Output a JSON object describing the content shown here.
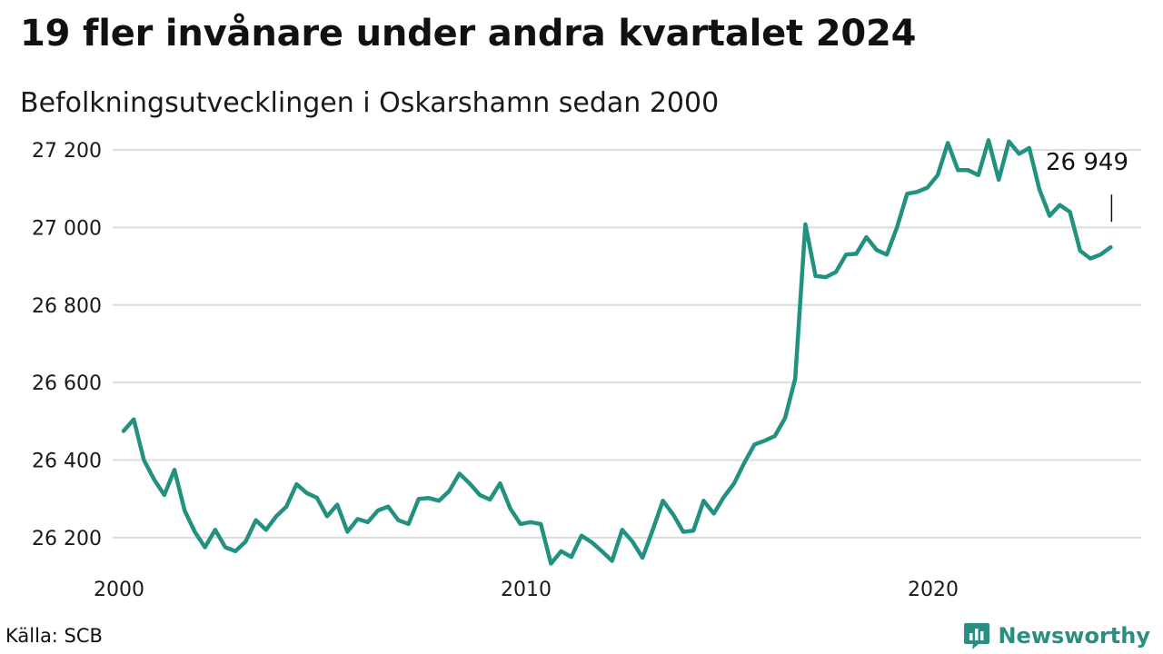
{
  "chart_data": {
    "type": "line",
    "title": "19 fler invånare under andra kvartalet 2024",
    "subtitle": "Befolkningsutvecklingen i Oskarshamn sedan 2000",
    "xlabel": "",
    "ylabel": "",
    "ylim": [
      26120,
      27240
    ],
    "yticks": [
      26200,
      26400,
      26600,
      26800,
      27000,
      27200
    ],
    "ytick_labels": [
      "26 200",
      "26 400",
      "26 600",
      "26 800",
      "27 000",
      "27 200"
    ],
    "xticks": [
      2000,
      2010,
      2020
    ],
    "xtick_labels": [
      "2000",
      "2010",
      "2020"
    ],
    "grid": "horizontal",
    "legend": "none",
    "line_color": "#22917f",
    "series": [
      {
        "x": [
          2000.0,
          2000.25,
          2000.5,
          2000.75,
          2001.0,
          2001.25,
          2001.5,
          2001.75,
          2002.0,
          2002.25,
          2002.5,
          2002.75,
          2003.0,
          2003.25,
          2003.5,
          2003.75,
          2004.0,
          2004.25,
          2004.5,
          2004.75,
          2005.0,
          2005.25,
          2005.5,
          2005.75,
          2006.0,
          2006.25,
          2006.5,
          2006.75,
          2007.0,
          2007.25,
          2007.5,
          2007.75,
          2008.0,
          2008.25,
          2008.5,
          2008.75,
          2009.0,
          2009.25,
          2009.5,
          2009.75,
          2010.0,
          2010.25,
          2010.5,
          2010.75,
          2011.0,
          2011.25,
          2011.5,
          2011.75,
          2012.0,
          2012.25,
          2012.5,
          2012.75,
          2013.0,
          2013.25,
          2013.5,
          2013.75,
          2014.0,
          2014.25,
          2014.5,
          2014.75,
          2015.0,
          2015.25,
          2015.5,
          2015.75,
          2016.0,
          2016.25,
          2016.5,
          2016.75,
          2017.0,
          2017.25,
          2017.5,
          2017.75,
          2018.0,
          2018.25,
          2018.5,
          2018.75,
          2019.0,
          2019.25,
          2019.5,
          2019.75,
          2020.0,
          2020.25,
          2020.5,
          2020.75,
          2021.0,
          2021.25,
          2021.5,
          2021.75,
          2022.0,
          2022.25,
          2022.5,
          2022.75,
          2023.0,
          2023.25,
          2023.5,
          2023.75,
          2024.0,
          2024.25
        ],
        "values": [
          26475,
          26505,
          26400,
          26350,
          26310,
          26375,
          26270,
          26215,
          26175,
          26220,
          26175,
          26165,
          26190,
          26245,
          26220,
          26255,
          26280,
          26338,
          26315,
          26303,
          26255,
          26285,
          26215,
          26248,
          26240,
          26270,
          26280,
          26245,
          26235,
          26300,
          26302,
          26295,
          26320,
          26365,
          26340,
          26310,
          26298,
          26340,
          26275,
          26235,
          26240,
          26235,
          26133,
          26165,
          26150,
          26205,
          26188,
          26165,
          26140,
          26220,
          26190,
          26148,
          26220,
          26295,
          26260,
          26215,
          26218,
          26295,
          26262,
          26305,
          26340,
          26393,
          26440,
          26450,
          26462,
          26508,
          26610,
          27008,
          26875,
          26872,
          26885,
          26930,
          26932,
          26975,
          26942,
          26930,
          27000,
          27087,
          27092,
          27103,
          27135,
          27218,
          27148,
          27148,
          27135,
          27225,
          27123,
          27222,
          27190,
          27205,
          27098,
          27030,
          27058,
          27040,
          26940,
          26920,
          26930,
          26949
        ]
      }
    ],
    "annotation": {
      "label": "26 949",
      "x": 2024.25,
      "value": 26949
    }
  },
  "source": "Källa: SCB",
  "brand": "Newsworthy",
  "colors": {
    "line": "#22917f",
    "grid": "#dcdcdc",
    "brand": "#2a8f82"
  }
}
